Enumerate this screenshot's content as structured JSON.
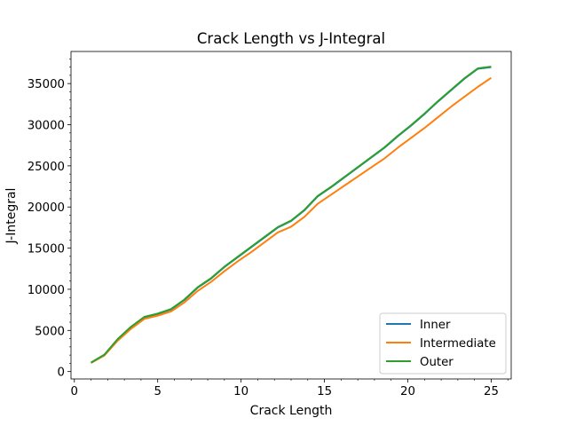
{
  "chart_data": {
    "type": "line",
    "title": "Crack Length vs J-Integral",
    "xlabel": "Crack Length",
    "ylabel": "J-Integral",
    "xlim": [
      -0.2,
      26.2
    ],
    "ylim": [
      -900,
      38900
    ],
    "xticks": [
      0,
      5,
      10,
      15,
      20,
      25
    ],
    "yticks": [
      0,
      5000,
      10000,
      15000,
      20000,
      25000,
      30000,
      35000
    ],
    "x_minor_step": 1,
    "y_minor_step": 1000,
    "grid": false,
    "legend_position": "lower-right",
    "x": [
      1,
      1.8,
      2.6,
      3.4,
      4.2,
      5,
      5.8,
      6.6,
      7.4,
      8.2,
      9,
      9.8,
      10.6,
      11.4,
      12.2,
      13,
      13.8,
      14.6,
      15.4,
      16.2,
      17,
      17.8,
      18.6,
      19.4,
      20.2,
      21,
      21.8,
      22.6,
      23.4,
      24.2,
      25
    ],
    "series": [
      {
        "name": "Inner",
        "color": "#1f77b4",
        "values": [
          1050,
          2000,
          3900,
          5400,
          6600,
          7000,
          7550,
          8700,
          10200,
          11300,
          12700,
          13900,
          15100,
          16300,
          17500,
          18300,
          19600,
          21300,
          22400,
          23600,
          24800,
          26000,
          27200,
          28600,
          29900,
          31300,
          32800,
          34200,
          35600,
          36800,
          37000
        ]
      },
      {
        "name": "Intermediate",
        "color": "#ff7f0e",
        "values": [
          1050,
          1950,
          3750,
          5200,
          6400,
          6800,
          7300,
          8400,
          9800,
          10900,
          12200,
          13400,
          14500,
          15700,
          16900,
          17600,
          18800,
          20400,
          21500,
          22600,
          23700,
          24800,
          25900,
          27200,
          28400,
          29600,
          30900,
          32200,
          33400,
          34600,
          35700
        ]
      },
      {
        "name": "Outer",
        "color": "#2ca02c",
        "values": [
          1100,
          2050,
          3950,
          5450,
          6650,
          7050,
          7600,
          8750,
          10250,
          11350,
          12750,
          13950,
          15150,
          16350,
          17550,
          18350,
          19650,
          21350,
          22450,
          23650,
          24850,
          26050,
          27250,
          28650,
          29950,
          31350,
          32850,
          34250,
          35650,
          36850,
          37050
        ]
      }
    ]
  }
}
